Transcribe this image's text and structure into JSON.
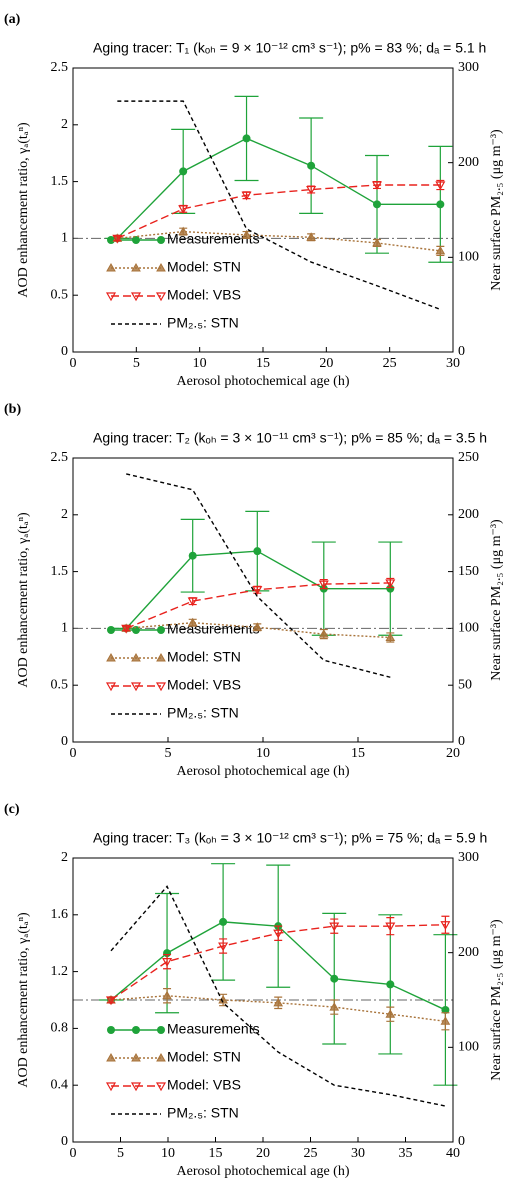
{
  "chart_data": [
    {
      "type": "line",
      "panel_label": "(a)",
      "title": "Aging tracer: T₁ (kₒₕ = 9 × 10⁻¹² cm³ s⁻¹); p% = 83 %; dₐ = 5.1 h",
      "xlabel": "Aerosol photochemical age (h)",
      "ylabel": "AOD enhancement ratio, γₐ(tₐⁿ)",
      "y2label": "Near surface PM₂.₅ (μg m⁻³)",
      "x": [
        3.5,
        8.7,
        13.7,
        18.8,
        24,
        29
      ],
      "xlim": [
        0,
        30
      ],
      "xticks": [
        0,
        5,
        10,
        15,
        20,
        25,
        30
      ],
      "ylim": [
        0,
        2.5
      ],
      "yticks": [
        0,
        0.5,
        1,
        1.5,
        2,
        2.5
      ],
      "y2lim": [
        0,
        300
      ],
      "y2ticks": [
        0,
        100,
        200,
        300
      ],
      "hline": 1,
      "series": [
        {
          "name": "Measurements",
          "color": "#1fa33a",
          "marker": "circle",
          "line": "solid",
          "values": [
            1.0,
            1.59,
            1.88,
            1.64,
            1.3,
            1.3
          ],
          "errors": [
            0,
            0.37,
            0.37,
            0.42,
            0.43,
            0.51
          ]
        },
        {
          "name": "Model: STN",
          "color": "#a8733a",
          "marker": "triangle",
          "line": "dotted",
          "values": [
            1.0,
            1.06,
            1.03,
            1.01,
            0.96,
            0.89
          ],
          "errors": [
            0.02,
            0.03,
            0.03,
            0.03,
            0.03,
            0.04
          ]
        },
        {
          "name": "Model: VBS",
          "color": "#e8221d",
          "marker": "triangle-down",
          "line": "dashed",
          "values": [
            1.0,
            1.26,
            1.38,
            1.43,
            1.47,
            1.47
          ],
          "errors": [
            0.02,
            0.03,
            0.03,
            0.03,
            0.03,
            0.04
          ]
        },
        {
          "name": "PM₂.₅: STN",
          "color": "#000000",
          "marker": "none",
          "line": "short-dashed",
          "axis": "y2",
          "values": [
            265,
            265,
            130,
            95,
            70,
            45
          ]
        }
      ]
    },
    {
      "type": "line",
      "panel_label": "(b)",
      "title": "Aging tracer: T₂ (kₒₕ = 3 × 10⁻¹¹ cm³ s⁻¹); p% = 85 %; dₐ = 3.5 h",
      "xlabel": "Aerosol photochemical age (h)",
      "ylabel": "AOD enhancement ratio, γₐ(tₐⁿ)",
      "y2label": "Near surface PM₂.₅ (μg m⁻³)",
      "x": [
        2.8,
        6.3,
        9.7,
        13.2,
        16.7
      ],
      "xlim": [
        0,
        20
      ],
      "xticks": [
        0,
        5,
        10,
        15,
        20
      ],
      "ylim": [
        0,
        2.5
      ],
      "yticks": [
        0,
        0.5,
        1,
        1.5,
        2,
        2.5
      ],
      "y2lim": [
        0,
        250
      ],
      "y2ticks": [
        0,
        50,
        100,
        150,
        200,
        250
      ],
      "hline": 1,
      "series": [
        {
          "name": "Measurements",
          "color": "#1fa33a",
          "marker": "circle",
          "line": "solid",
          "values": [
            1.0,
            1.64,
            1.68,
            1.35,
            1.35
          ],
          "errors": [
            0,
            0.32,
            0.35,
            0.41,
            0.41
          ]
        },
        {
          "name": "Model: STN",
          "color": "#a8733a",
          "marker": "triangle",
          "line": "dotted",
          "values": [
            1.0,
            1.05,
            1.01,
            0.95,
            0.92
          ],
          "errors": [
            0.02,
            0.03,
            0.03,
            0.04,
            0.04
          ]
        },
        {
          "name": "Model: VBS",
          "color": "#e8221d",
          "marker": "triangle-down",
          "line": "dashed",
          "values": [
            1.0,
            1.24,
            1.34,
            1.39,
            1.4
          ],
          "errors": [
            0.02,
            0.03,
            0.03,
            0.04,
            0.04
          ]
        },
        {
          "name": "PM₂.₅: STN",
          "color": "#000000",
          "marker": "none",
          "line": "short-dashed",
          "axis": "y2",
          "values": [
            236,
            222,
            128,
            72,
            57
          ]
        }
      ]
    },
    {
      "type": "line",
      "panel_label": "(c)",
      "title": "Aging tracer: T₃ (kₒₕ = 3 × 10⁻¹² cm³ s⁻¹); p% = 75 %; dₐ = 5.9 h",
      "xlabel": "Aerosol photochemical age (h)",
      "ylabel": "AOD enhancement ratio, γₐ(tₐⁿ)",
      "y2label": "Near surface PM₂.₅ (μg m⁻³)",
      "x": [
        4,
        9.9,
        15.8,
        21.6,
        27.5,
        33.4,
        39.2
      ],
      "xlim": [
        0,
        40
      ],
      "xticks": [
        0,
        5,
        10,
        15,
        20,
        25,
        30,
        35,
        40
      ],
      "ylim": [
        0,
        2
      ],
      "yticks": [
        0,
        0.4,
        0.8,
        1.2,
        1.6,
        2
      ],
      "y2lim": [
        0,
        300
      ],
      "y2ticks": [
        0,
        100,
        200,
        300
      ],
      "hline": 1,
      "series": [
        {
          "name": "Measurements",
          "color": "#1fa33a",
          "marker": "circle",
          "line": "solid",
          "values": [
            1.0,
            1.33,
            1.55,
            1.52,
            1.15,
            1.11,
            0.93
          ],
          "errors": [
            0,
            0.42,
            0.41,
            0.43,
            0.46,
            0.49,
            0.53
          ]
        },
        {
          "name": "Model: STN",
          "color": "#a8733a",
          "marker": "triangle",
          "line": "dotted",
          "values": [
            1.0,
            1.03,
            1.0,
            0.98,
            0.95,
            0.9,
            0.85
          ],
          "errors": [
            0.02,
            0.05,
            0.04,
            0.04,
            0.05,
            0.05,
            0.06
          ]
        },
        {
          "name": "Model: VBS",
          "color": "#e8221d",
          "marker": "triangle-down",
          "line": "dashed",
          "values": [
            1.0,
            1.27,
            1.38,
            1.47,
            1.52,
            1.52,
            1.53
          ],
          "errors": [
            0.02,
            0.05,
            0.05,
            0.05,
            0.05,
            0.06,
            0.06
          ]
        },
        {
          "name": "PM₂.₅: STN",
          "color": "#000000",
          "marker": "none",
          "line": "short-dashed",
          "axis": "y2",
          "values": [
            202,
            270,
            147,
            95,
            60,
            50,
            38
          ]
        }
      ]
    }
  ]
}
